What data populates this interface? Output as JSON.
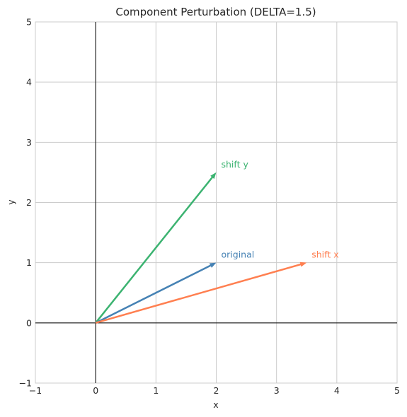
{
  "chart_data": {
    "type": "vector",
    "title": "Component Perturbation (DELTA=1.5)",
    "xlabel": "x",
    "ylabel": "y",
    "xlim": [
      -1,
      5
    ],
    "ylim": [
      -1,
      5
    ],
    "xticks": [
      "−1",
      "0",
      "1",
      "2",
      "3",
      "4",
      "5"
    ],
    "yticks": [
      "−1",
      "0",
      "1",
      "2",
      "3",
      "4",
      "5"
    ],
    "xtick_values": [
      -1,
      0,
      1,
      2,
      3,
      4,
      5
    ],
    "ytick_values": [
      -1,
      0,
      1,
      2,
      3,
      4,
      5
    ],
    "grid": true,
    "axes_through_origin": true,
    "vectors": [
      {
        "label": "shift y",
        "origin": [
          0,
          0
        ],
        "end": [
          2,
          2.5
        ],
        "color": "#3cb371"
      },
      {
        "label": "original",
        "origin": [
          0,
          0
        ],
        "end": [
          2,
          1
        ],
        "color": "#4682b4"
      },
      {
        "label": "shift x",
        "origin": [
          0,
          0
        ],
        "end": [
          3.5,
          1
        ],
        "color": "#ff7f50"
      }
    ]
  }
}
